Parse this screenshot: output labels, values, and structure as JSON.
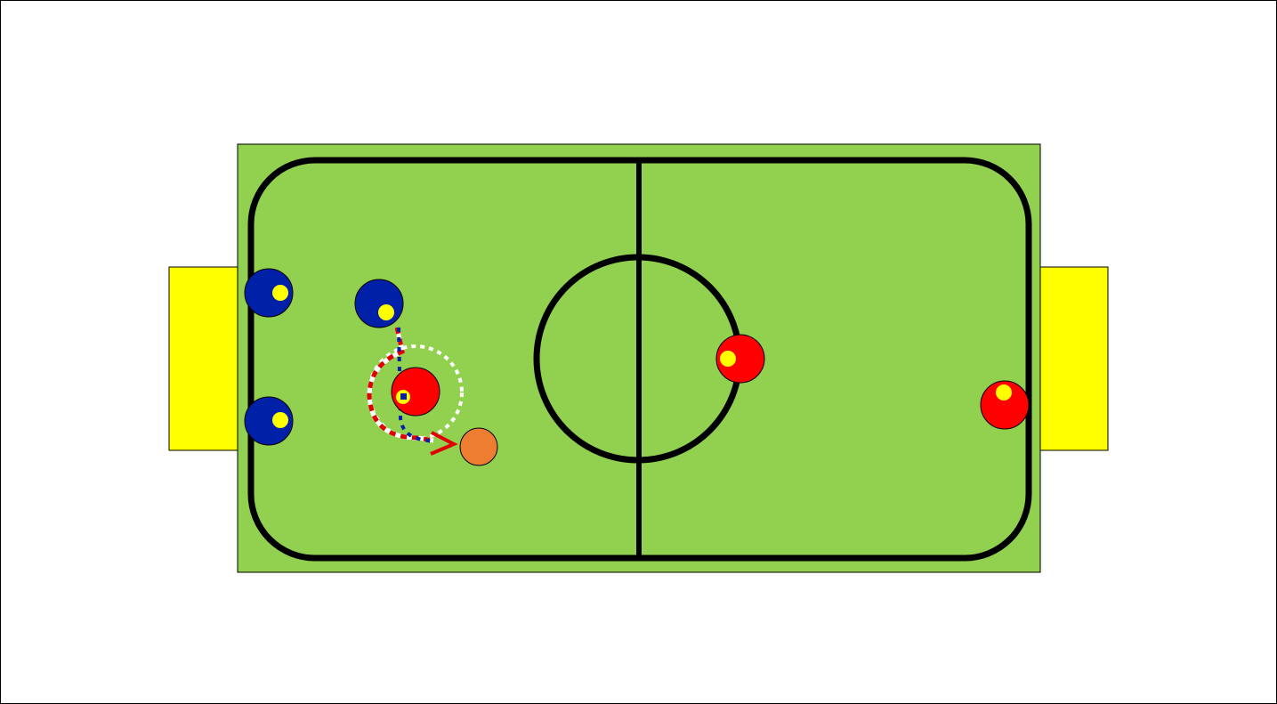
{
  "colors": {
    "background": "#ffffff",
    "pitch": "#92d050",
    "goal": "#ffff00",
    "lines": "#000000",
    "team_blue": "#0020a8",
    "team_red": "#ff0000",
    "player_marker": "#ffff00",
    "ball": "#ed7d31",
    "path_red": "#e00000",
    "path_white": "#ffffff",
    "path_blue": "#0020a8"
  },
  "players": [
    {
      "team": "blue",
      "role": "goalkeeper-top"
    },
    {
      "team": "blue",
      "role": "goalkeeper-bottom"
    },
    {
      "team": "blue",
      "role": "attacker"
    },
    {
      "team": "red",
      "role": "defender"
    },
    {
      "team": "red",
      "role": "midfielder"
    },
    {
      "team": "red",
      "role": "goalkeeper"
    }
  ],
  "annotations": {
    "movement_paths": [
      "red-white-curved-run",
      "blue-dotted-run",
      "white-dotted-circle"
    ],
    "ball": "orange-ball"
  }
}
